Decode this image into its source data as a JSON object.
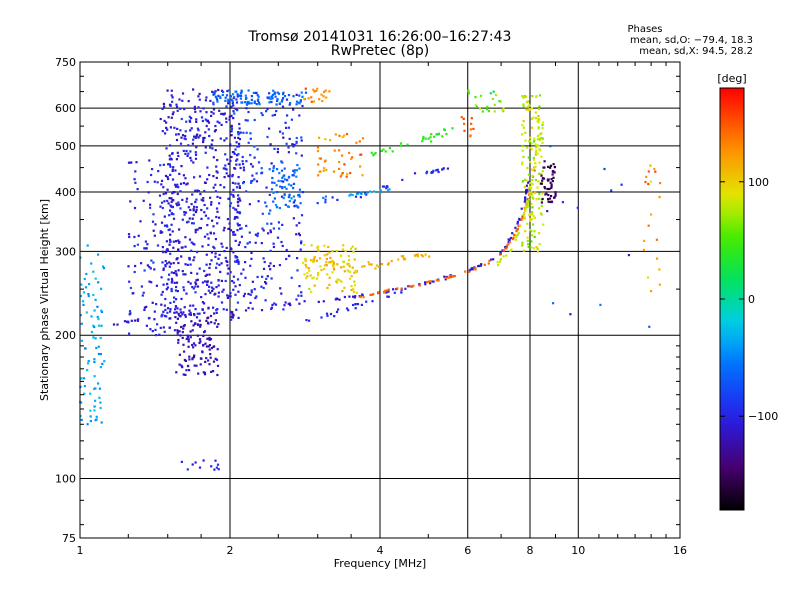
{
  "chart_data": {
    "type": "scatter",
    "title": "Tromsø 20141031 16:26:00–16:27:43",
    "subtitle": "RwPretec (8p)",
    "xlabel": "Frequency [MHz]",
    "ylabel": "Stationary phase Virtual Height [km]",
    "xscale": "log",
    "yscale": "log",
    "xlim": [
      1,
      16
    ],
    "ylim": [
      75,
      750
    ],
    "x_ticks": [
      1,
      2,
      4,
      6,
      8,
      10,
      16
    ],
    "y_ticks": [
      75,
      100,
      200,
      300,
      400,
      500,
      600,
      750
    ],
    "grid": true,
    "phase_stats": {
      "heading": "Phases",
      "line_o": "mean, sd,O: −79.4, 18.3",
      "line_x": "mean, sd,X:  94.5, 28.2"
    },
    "colorbar": {
      "title": "[deg]",
      "range": [
        -180,
        180
      ],
      "ticks": [
        {
          "value": 100,
          "label": "100"
        },
        {
          "value": 0,
          "label": "0"
        },
        {
          "value": -100,
          "label": "−100"
        }
      ]
    },
    "traces": [
      {
        "kind": "curve",
        "points": [
          [
            1.15,
            210
          ],
          [
            1.3,
            215
          ],
          [
            1.5,
            218
          ],
          [
            1.7,
            221
          ],
          [
            2.0,
            224
          ],
          [
            2.5,
            230
          ],
          [
            3.0,
            236
          ],
          [
            3.5,
            241
          ],
          [
            4.0,
            246
          ],
          [
            4.5,
            252
          ],
          [
            5.0,
            258
          ],
          [
            5.5,
            265
          ],
          [
            6.0,
            273
          ],
          [
            6.5,
            283
          ],
          [
            7.0,
            298
          ],
          [
            7.3,
            320
          ],
          [
            7.6,
            350
          ],
          [
            7.8,
            385
          ],
          [
            7.95,
            420
          ]
        ],
        "phase": -110,
        "jitter": 0.012,
        "n": 110
      },
      {
        "kind": "curve",
        "points": [
          [
            3.6,
            240
          ],
          [
            4.0,
            246
          ],
          [
            4.5,
            252
          ],
          [
            5.0,
            258
          ],
          [
            5.5,
            265
          ],
          [
            6.0,
            272
          ],
          [
            6.5,
            282
          ],
          [
            7.0,
            296
          ],
          [
            7.4,
            320
          ],
          [
            7.7,
            350
          ],
          [
            7.9,
            380
          ],
          [
            8.05,
            410
          ],
          [
            8.2,
            450
          ]
        ],
        "phase": 145,
        "jitter": 0.01,
        "n": 70
      },
      {
        "kind": "curve",
        "points": [
          [
            6.8,
            280
          ],
          [
            7.3,
            300
          ],
          [
            7.6,
            330
          ],
          [
            7.85,
            370
          ],
          [
            8.05,
            420
          ],
          [
            8.2,
            470
          ],
          [
            8.3,
            530
          ],
          [
            8.35,
            590
          ]
        ],
        "phase": 80,
        "jitter": 0.015,
        "n": 45
      },
      {
        "kind": "curve",
        "points": [
          [
            2.8,
            215
          ],
          [
            3.2,
            222
          ],
          [
            3.6,
            232
          ],
          [
            4.0,
            240
          ],
          [
            4.6,
            248
          ]
        ],
        "phase": -95,
        "jitter": 0.02,
        "n": 25
      },
      {
        "kind": "curve",
        "points": [
          [
            2.9,
            290
          ],
          [
            3.5,
            280
          ],
          [
            4.0,
            282
          ],
          [
            4.5,
            290
          ],
          [
            5.0,
            295
          ]
        ],
        "phase": 115,
        "jitter": 0.03,
        "n": 40
      },
      {
        "kind": "curve",
        "points": [
          [
            3.0,
            380
          ],
          [
            3.6,
            390
          ],
          [
            4.2,
            415
          ],
          [
            5.0,
            440
          ],
          [
            5.5,
            450
          ]
        ],
        "phase": -95,
        "jitter": 0.02,
        "n": 30
      },
      {
        "kind": "curve",
        "points": [
          [
            3.8,
            480
          ],
          [
            4.4,
            500
          ],
          [
            5.0,
            520
          ],
          [
            5.6,
            540
          ]
        ],
        "phase": 40,
        "jitter": 0.03,
        "n": 30
      },
      {
        "kind": "curve",
        "points": [
          [
            3.0,
            390
          ],
          [
            3.5,
            395
          ],
          [
            3.8,
            400
          ],
          [
            4.2,
            405
          ]
        ],
        "phase": -40,
        "jitter": 0.015,
        "n": 18
      },
      {
        "kind": "cloud",
        "x": [
          1.45,
          2.1
        ],
        "y": [
          215,
          660
        ],
        "phase": -105,
        "spread": 40,
        "n": 620
      },
      {
        "kind": "cloud",
        "x": [
          1.55,
          1.9
        ],
        "y": [
          165,
          215
        ],
        "phase": -120,
        "spread": 25,
        "n": 110
      },
      {
        "kind": "cloud",
        "x": [
          1.25,
          1.55
        ],
        "y": [
          200,
          470
        ],
        "phase": -100,
        "spread": 35,
        "n": 120
      },
      {
        "kind": "cloud",
        "x": [
          2.0,
          2.8
        ],
        "y": [
          330,
          650
        ],
        "phase": -90,
        "spread": 55,
        "n": 160
      },
      {
        "kind": "cloud",
        "x": [
          2.4,
          2.8
        ],
        "y": [
          370,
          450
        ],
        "phase": -60,
        "spread": 35,
        "n": 60
      },
      {
        "kind": "cloud",
        "x": [
          1.85,
          2.85
        ],
        "y": [
          610,
          655
        ],
        "phase": -65,
        "spread": 30,
        "n": 100
      },
      {
        "kind": "cloud",
        "x": [
          2.05,
          2.8
        ],
        "y": [
          225,
          330
        ],
        "phase": -100,
        "spread": 35,
        "n": 90
      },
      {
        "kind": "cloud",
        "x": [
          1.0,
          1.12
        ],
        "y": [
          130,
          310
        ],
        "phase": -35,
        "spread": 30,
        "n": 85
      },
      {
        "kind": "cloud",
        "x": [
          2.8,
          3.6
        ],
        "y": [
          245,
          310
        ],
        "phase": 100,
        "spread": 45,
        "n": 100
      },
      {
        "kind": "cloud",
        "x": [
          3.0,
          3.7
        ],
        "y": [
          430,
          530
        ],
        "phase": 130,
        "spread": 45,
        "n": 45
      },
      {
        "kind": "cloud",
        "x": [
          2.8,
          3.3
        ],
        "y": [
          615,
          660
        ],
        "phase": 130,
        "spread": 50,
        "n": 18
      },
      {
        "kind": "cloud",
        "x": [
          7.7,
          8.5
        ],
        "y": [
          300,
          640
        ],
        "phase": 80,
        "spread": 45,
        "n": 150
      },
      {
        "kind": "cloud",
        "x": [
          8.4,
          9.0
        ],
        "y": [
          380,
          470
        ],
        "phase": -150,
        "spread": 30,
        "n": 50
      },
      {
        "kind": "cloud",
        "x": [
          6.0,
          7.2
        ],
        "y": [
          590,
          660
        ],
        "phase": 60,
        "spread": 80,
        "n": 22
      },
      {
        "kind": "cloud",
        "x": [
          5.8,
          6.2
        ],
        "y": [
          520,
          580
        ],
        "phase": 150,
        "spread": 30,
        "n": 10
      },
      {
        "kind": "cloud",
        "x": [
          1.6,
          1.9
        ],
        "y": [
          104,
          110
        ],
        "phase": -100,
        "spread": 20,
        "n": 12
      },
      {
        "kind": "cloud",
        "x": [
          13.5,
          14.6
        ],
        "y": [
          240,
          470
        ],
        "phase": 120,
        "spread": 60,
        "n": 20
      },
      {
        "kind": "cloud",
        "x": [
          8.0,
          14.0
        ],
        "y": [
          190,
          500
        ],
        "phase": -80,
        "spread": 90,
        "n": 12
      }
    ]
  }
}
